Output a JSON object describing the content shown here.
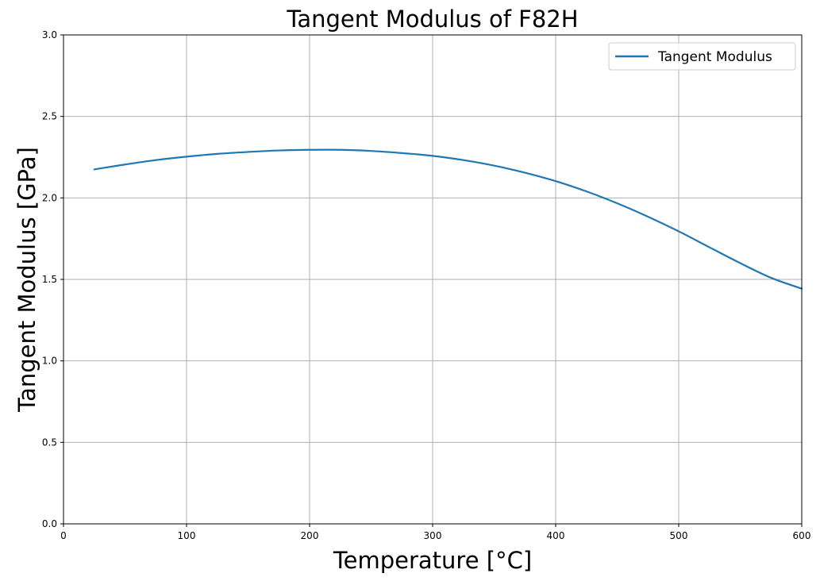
{
  "chart_data": {
    "type": "line",
    "title": "Tangent Modulus of F82H",
    "xlabel": "Temperature [°C]",
    "ylabel": "Tangent Modulus [GPa]",
    "xlim": [
      0,
      600
    ],
    "ylim": [
      0,
      3.0
    ],
    "xticks": [
      0,
      100,
      200,
      300,
      400,
      500,
      600
    ],
    "xtick_labels": [
      "0",
      "100",
      "200",
      "300",
      "400",
      "500",
      "600"
    ],
    "yticks": [
      0,
      0.5,
      1.0,
      1.5,
      2.0,
      2.5,
      3.0
    ],
    "ytick_labels": [
      "0.0",
      "0.5",
      "1.0",
      "1.5",
      "2.0",
      "2.5",
      "3.0"
    ],
    "grid": true,
    "legend_position": "top-right",
    "series": [
      {
        "name": "Tangent Modulus",
        "color": "#1f77b4",
        "x": [
          25,
          50,
          75,
          100,
          125,
          150,
          175,
          200,
          225,
          250,
          275,
          300,
          325,
          350,
          375,
          400,
          425,
          450,
          475,
          500,
          525,
          550,
          575,
          600
        ],
        "y": [
          2.175,
          2.205,
          2.232,
          2.253,
          2.27,
          2.282,
          2.291,
          2.295,
          2.295,
          2.288,
          2.275,
          2.258,
          2.232,
          2.198,
          2.155,
          2.103,
          2.04,
          1.967,
          1.885,
          1.795,
          1.697,
          1.6,
          1.51,
          1.443
        ]
      }
    ]
  }
}
